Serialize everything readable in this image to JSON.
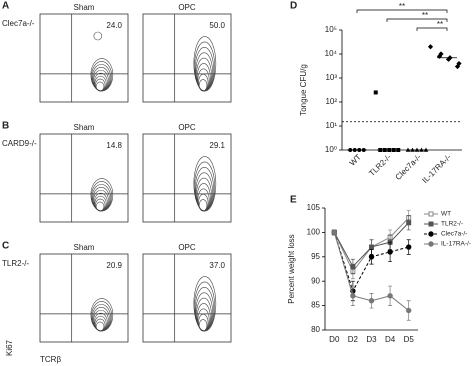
{
  "flow": {
    "rows": [
      {
        "letter": "A",
        "label": "Clec7a-/-",
        "panels": [
          {
            "title": "Sham",
            "percent": "24.0"
          },
          {
            "title": "OPC",
            "percent": "50.0"
          }
        ]
      },
      {
        "letter": "B",
        "label": "CARD9-/-",
        "panels": [
          {
            "title": "Sham",
            "percent": "14.8"
          },
          {
            "title": "OPC",
            "percent": "29.1"
          }
        ]
      },
      {
        "letter": "C",
        "label": "TLR2-/-",
        "panels": [
          {
            "title": "Sham",
            "percent": "20.9"
          },
          {
            "title": "OPC",
            "percent": "37.0"
          }
        ]
      }
    ],
    "y_label": "Ki67",
    "x_label": "TCRβ"
  },
  "chart_data": [
    {
      "type": "dot",
      "panel": "D",
      "y_label": "Tongue CFU/g",
      "yscale": "log",
      "categories": [
        "WT",
        "TLR2-/-",
        "Clec7a-/-",
        "IL-17RA-/-"
      ],
      "markers": [
        "circle",
        "square",
        "triangle",
        "diamond"
      ],
      "values": [
        [
          1,
          1,
          1,
          1
        ],
        [
          250,
          1,
          1,
          1,
          1,
          1
        ],
        [
          1,
          1,
          1,
          1,
          1
        ],
        [
          20000,
          10000,
          8000,
          7000,
          6000,
          4000,
          3000
        ]
      ],
      "medians": [
        1,
        1,
        1,
        7000
      ],
      "limit_line": 15,
      "ylim": [
        1,
        100000
      ],
      "yticks": [
        {
          "value": 1,
          "label": "10⁰"
        },
        {
          "value": 10,
          "label": "10¹"
        },
        {
          "value": 100,
          "label": "10²"
        },
        {
          "value": 1000,
          "label": "10³"
        },
        {
          "value": 10000,
          "label": "10⁴"
        },
        {
          "value": 100000,
          "label": "10⁵"
        }
      ],
      "annotations": [
        {
          "text": "**",
          "from": 0,
          "to": 3
        },
        {
          "text": "**",
          "from": 1,
          "to": 3
        },
        {
          "text": "**",
          "from": 2,
          "to": 3
        }
      ],
      "color": "#000000"
    },
    {
      "type": "line",
      "panel": "E",
      "y_label": "Percent weight loss",
      "categories": [
        "D0",
        "D2",
        "D3",
        "D4",
        "D5"
      ],
      "ylim": [
        80,
        105
      ],
      "yticks": [
        80,
        85,
        90,
        95,
        100,
        105
      ],
      "legend": "top-right",
      "series": [
        {
          "name": "WT",
          "color": "#888888",
          "marker": "square-open",
          "dash": false,
          "values": [
            100,
            92,
            97,
            99,
            103
          ],
          "errors": [
            0.5,
            1.5,
            1.5,
            1.5,
            1.5
          ]
        },
        {
          "name": "TLR2-/-",
          "color": "#555555",
          "marker": "square",
          "dash": false,
          "values": [
            100,
            93,
            97,
            98,
            102
          ],
          "errors": [
            0.5,
            1.5,
            1.5,
            1.5,
            1.5
          ]
        },
        {
          "name": "Clec7a-/-",
          "color": "#000000",
          "marker": "circle",
          "dash": true,
          "values": [
            100,
            88,
            95,
            96,
            97
          ],
          "errors": [
            0.5,
            2,
            1.5,
            2,
            1.5
          ]
        },
        {
          "name": "IL-17RA-/-",
          "color": "#777777",
          "marker": "circle",
          "dash": false,
          "values": [
            100,
            87,
            86,
            87,
            84
          ],
          "errors": [
            0.5,
            2,
            1.5,
            2,
            2
          ]
        }
      ]
    }
  ]
}
